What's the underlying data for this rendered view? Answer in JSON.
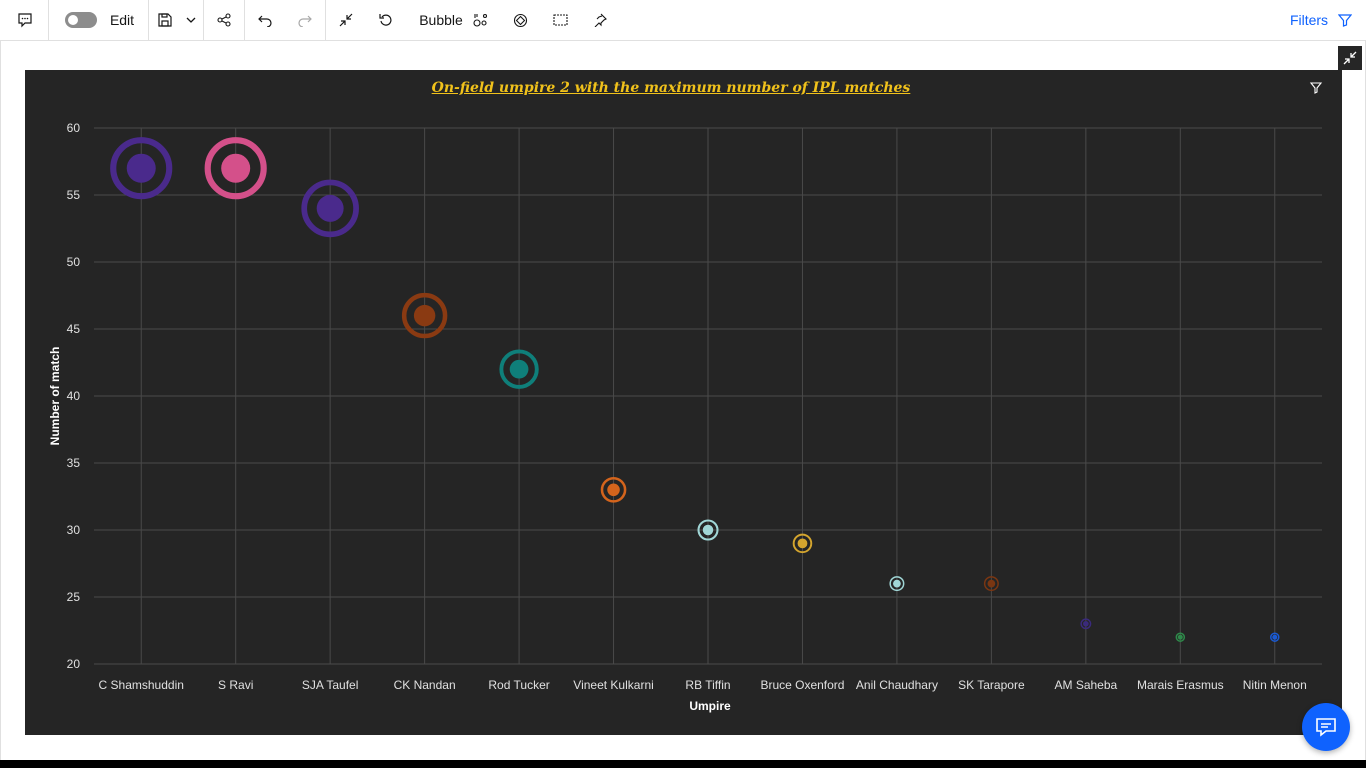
{
  "toolbar": {
    "edit_label": "Edit",
    "viz_type_label": "Bubble",
    "filters_label": "Filters"
  },
  "chart": {
    "title": "On-field umpire 2 with the maximum number of IPL matches"
  },
  "chart_data": {
    "type": "scatter",
    "subtype": "bubble",
    "title": "On-field umpire 2 with the maximum number of IPL matches",
    "xlabel": "Umpire",
    "ylabel": "Number of match",
    "ylim": [
      20,
      60
    ],
    "yticks": [
      20,
      25,
      30,
      35,
      40,
      45,
      50,
      55,
      60
    ],
    "grid": true,
    "categories": [
      "C Shamshuddin",
      "S Ravi",
      "SJA Taufel",
      "CK Nandan",
      "Rod Tucker",
      "Vineet Kulkarni",
      "RB Tiffin",
      "Bruce Oxenford",
      "Anil Chaudhary",
      "SK Tarapore",
      "AM Saheba",
      "Marais Erasmus",
      "Nitin Menon"
    ],
    "values": [
      57,
      57,
      54,
      46,
      42,
      33,
      30,
      29,
      26,
      26,
      23,
      22,
      22
    ],
    "colors": [
      "#4a2a8c",
      "#d4508a",
      "#4a2a8c",
      "#8a3a12",
      "#0f7f7a",
      "#d4641c",
      "#a0d6d6",
      "#d4a52e",
      "#a0d6d6",
      "#7a3612",
      "#3a2a7c",
      "#2e8a4a",
      "#1a5ad4"
    ]
  }
}
